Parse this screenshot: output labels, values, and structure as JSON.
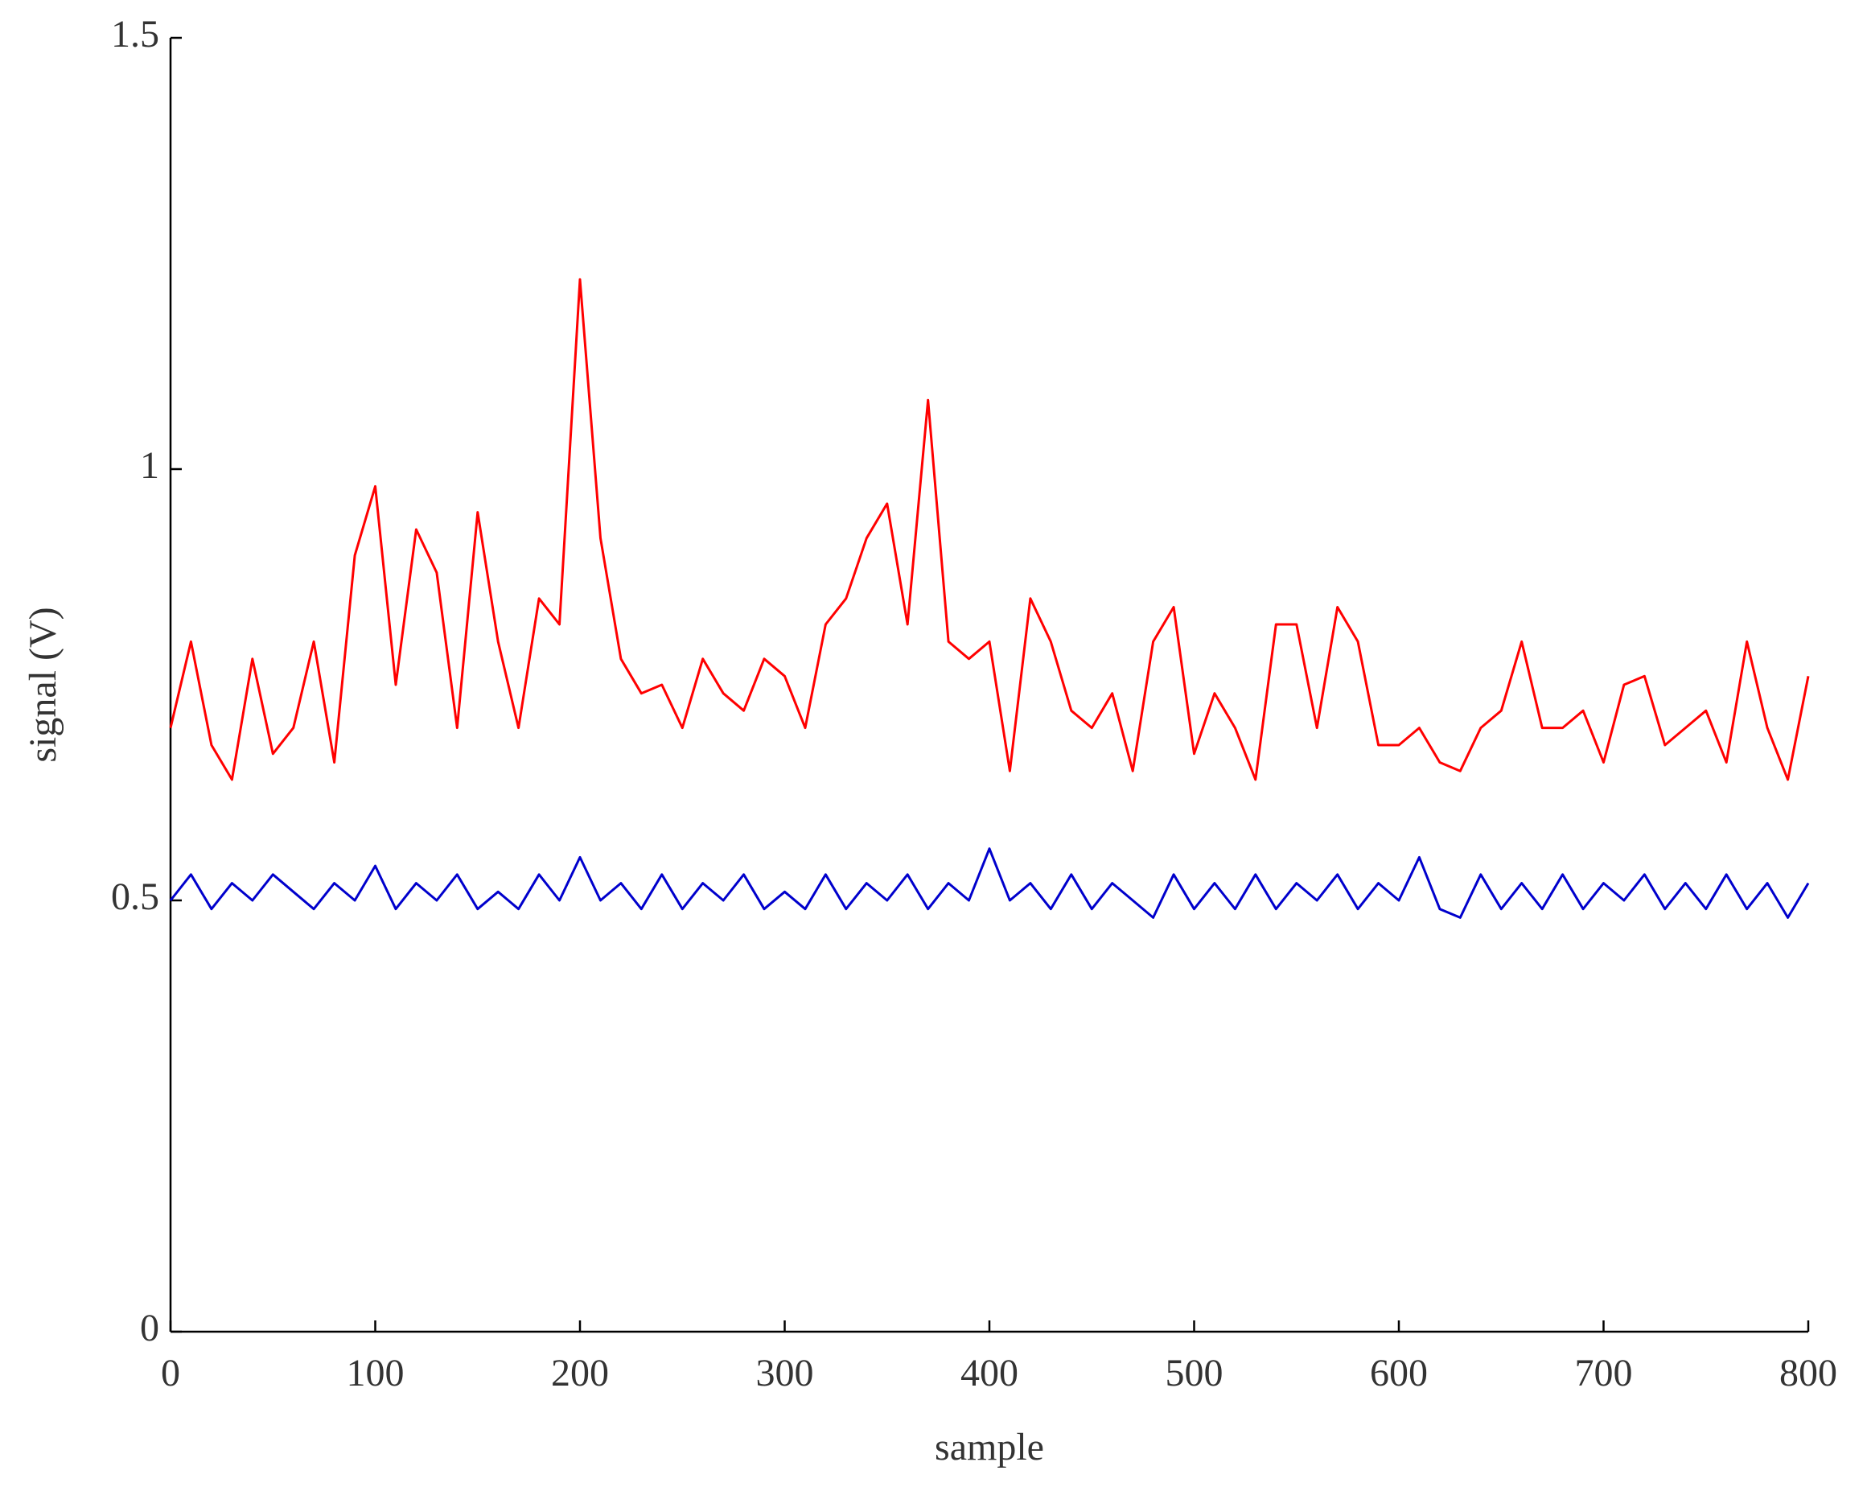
{
  "chart_data": {
    "type": "line",
    "x_label": "sample",
    "y_label": "signal (V)",
    "x": [
      0,
      10,
      20,
      30,
      40,
      50,
      60,
      70,
      80,
      90,
      100,
      110,
      120,
      130,
      140,
      150,
      160,
      170,
      180,
      190,
      200,
      210,
      220,
      230,
      240,
      250,
      260,
      270,
      280,
      290,
      300,
      310,
      320,
      330,
      340,
      350,
      360,
      370,
      380,
      390,
      400,
      410,
      420,
      430,
      440,
      450,
      460,
      470,
      480,
      490,
      500,
      510,
      520,
      530,
      540,
      550,
      560,
      570,
      580,
      590,
      600,
      610,
      620,
      630,
      640,
      650,
      660,
      670,
      680,
      690,
      700,
      710,
      720,
      730,
      740,
      750,
      760,
      770,
      780,
      790,
      800
    ],
    "series": [
      {
        "color": "#ff0000",
        "values": [
          0.7,
          0.8,
          0.68,
          0.64,
          0.78,
          0.67,
          0.7,
          0.8,
          0.66,
          0.9,
          0.98,
          0.75,
          0.93,
          0.88,
          0.7,
          0.95,
          0.8,
          0.7,
          0.85,
          0.82,
          1.22,
          0.92,
          0.78,
          0.74,
          0.75,
          0.7,
          0.78,
          0.74,
          0.72,
          0.78,
          0.76,
          0.7,
          0.82,
          0.85,
          0.92,
          0.96,
          0.82,
          1.08,
          0.8,
          0.78,
          0.8,
          0.65,
          0.85,
          0.8,
          0.72,
          0.7,
          0.74,
          0.65,
          0.8,
          0.84,
          0.67,
          0.74,
          0.7,
          0.64,
          0.82,
          0.82,
          0.7,
          0.84,
          0.8,
          0.68,
          0.68,
          0.7,
          0.66,
          0.65,
          0.7,
          0.72,
          0.8,
          0.7,
          0.7,
          0.72,
          0.66,
          0.75,
          0.76,
          0.68,
          0.7,
          0.72,
          0.66,
          0.8,
          0.7,
          0.64,
          0.76
        ]
      },
      {
        "color": "#0000cc",
        "values": [
          0.5,
          0.53,
          0.49,
          0.52,
          0.5,
          0.53,
          0.51,
          0.49,
          0.52,
          0.5,
          0.54,
          0.49,
          0.52,
          0.5,
          0.53,
          0.49,
          0.51,
          0.49,
          0.53,
          0.5,
          0.55,
          0.5,
          0.52,
          0.49,
          0.53,
          0.49,
          0.52,
          0.5,
          0.53,
          0.49,
          0.51,
          0.49,
          0.53,
          0.49,
          0.52,
          0.5,
          0.53,
          0.49,
          0.52,
          0.5,
          0.56,
          0.5,
          0.52,
          0.49,
          0.53,
          0.49,
          0.52,
          0.5,
          0.48,
          0.53,
          0.49,
          0.52,
          0.49,
          0.53,
          0.49,
          0.52,
          0.5,
          0.53,
          0.49,
          0.52,
          0.5,
          0.55,
          0.49,
          0.48,
          0.53,
          0.49,
          0.52,
          0.49,
          0.53,
          0.49,
          0.52,
          0.5,
          0.53,
          0.49,
          0.52,
          0.49,
          0.53,
          0.49,
          0.52,
          0.48,
          0.52
        ]
      }
    ],
    "xlim": [
      0,
      800
    ],
    "ylim": [
      0,
      1.5
    ],
    "xticks": [
      0,
      100,
      200,
      300,
      400,
      500,
      600,
      700,
      800
    ],
    "yticks": [
      0,
      0.5,
      1,
      1.5
    ]
  }
}
